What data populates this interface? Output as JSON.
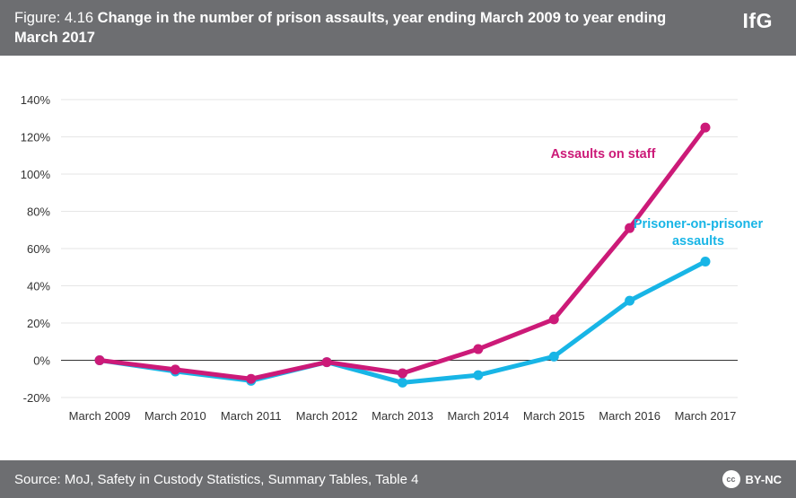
{
  "header": {
    "figure_label": "Figure: 4.16",
    "title": "Change in the number of prison assaults, year ending March 2009 to year ending March 2017",
    "logo": "IfG"
  },
  "footer": {
    "source": "Source: MoJ, Safety in Custody Statistics, Summary Tables, Table 4",
    "license": "BY-NC",
    "cc_icon_text": "cc"
  },
  "colors": {
    "staff": "#cc1a78",
    "prisoner": "#18b5e6",
    "header_bg": "#6d6e71"
  },
  "chart_data": {
    "type": "line",
    "title": "Change in the number of prison assaults, year ending March 2009 to year ending March 2017",
    "xlabel": "",
    "ylabel": "",
    "categories": [
      "March 2009",
      "March 2010",
      "March 2011",
      "March 2012",
      "March 2013",
      "March 2014",
      "March 2015",
      "March 2016",
      "March 2017"
    ],
    "yticks": [
      "-20%",
      "0%",
      "20%",
      "40%",
      "60%",
      "80%",
      "100%",
      "120%",
      "140%"
    ],
    "ylim": [
      -20,
      140
    ],
    "grid": true,
    "series": [
      {
        "name": "Prisoner-on-prisoner assaults",
        "label_lines": [
          "Prisoner-on-prisoner",
          "assaults"
        ],
        "color": "#18b5e6",
        "values": [
          0,
          -6,
          -11,
          -1,
          -12,
          -8,
          2,
          32,
          53
        ]
      },
      {
        "name": "Assaults on staff",
        "label_lines": [
          "Assaults on staff"
        ],
        "color": "#cc1a78",
        "values": [
          0,
          -5,
          -10,
          -1,
          -7,
          6,
          22,
          71,
          125
        ]
      }
    ]
  }
}
